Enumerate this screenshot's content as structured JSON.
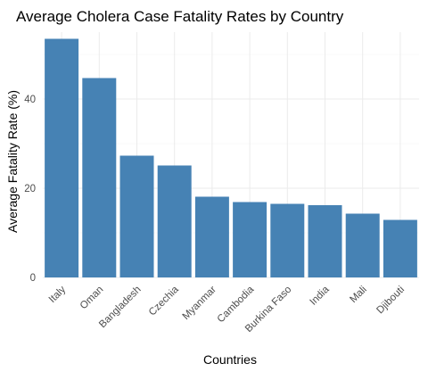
{
  "chart_data": {
    "type": "bar",
    "title": "Average Cholera Case Fatality Rates by Country",
    "xlabel": "Countries",
    "ylabel": "Average Fatality Rate (%)",
    "categories": [
      "Italy",
      "Oman",
      "Bangladesh",
      "Czechia",
      "Myanmar",
      "Cambodia",
      "Burkina Faso",
      "India",
      "Mali",
      "Djibouti"
    ],
    "values": [
      53.5,
      44.7,
      27.3,
      25.1,
      18.1,
      16.9,
      16.5,
      16.2,
      14.3,
      12.9
    ],
    "ylim": [
      0,
      55
    ],
    "yticks": [
      0,
      20,
      40
    ],
    "bar_color": "#4682b4",
    "grid": true,
    "legend": "none"
  }
}
